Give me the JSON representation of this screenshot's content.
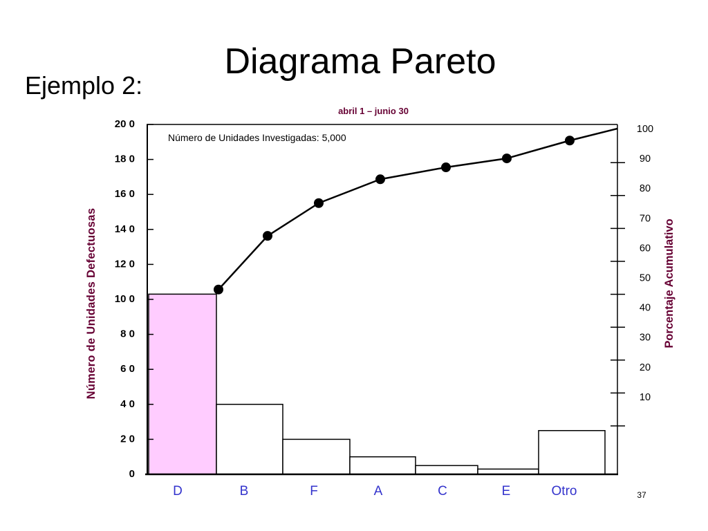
{
  "slide": {
    "title": "Diagrama Pareto",
    "subtitle": "Ejemplo 2:",
    "page_number": "37"
  },
  "chart_data": {
    "type": "bar",
    "subtitle": "abril 1 – junio 30",
    "annotation": "Número de Unidades Investigadas: 5,000",
    "categories": [
      "D",
      "B",
      "F",
      "A",
      "C",
      "E",
      "Otro"
    ],
    "series": [
      {
        "type": "bar",
        "axis": "left",
        "values": [
          103,
          40,
          20,
          10,
          5,
          3,
          25
        ],
        "colors": [
          "#FFCCFF",
          "#FFFFFF",
          "#FFFFFF",
          "#FFFFFF",
          "#FFFFFF",
          "#FFFFFF",
          "#FFFFFF"
        ]
      },
      {
        "type": "line",
        "axis": "right",
        "values": [
          46,
          64,
          75,
          83,
          87,
          90,
          96
        ],
        "end_value": 100
      }
    ],
    "ylabel": "Número de Unidades Defectuosas",
    "y2label": "Porcentaje Acumulativo",
    "ylim": [
      0,
      200
    ],
    "yticks": [
      0,
      20,
      40,
      60,
      80,
      100,
      120,
      140,
      160,
      180,
      200
    ],
    "ytick_labels": [
      "0",
      "2 0",
      "4 0",
      "6 0",
      "8 0",
      "10 0",
      "12 0",
      "14 0",
      "16 0",
      "18 0",
      "20 0"
    ],
    "y2lim": [
      0,
      100
    ],
    "y2ticks": [
      10,
      20,
      30,
      40,
      50,
      60,
      70,
      80,
      90,
      100
    ],
    "grid": false,
    "legend": "none",
    "colors": {
      "line": "#000000",
      "axis_label": "#660033",
      "category_label": "#3333CC"
    }
  }
}
